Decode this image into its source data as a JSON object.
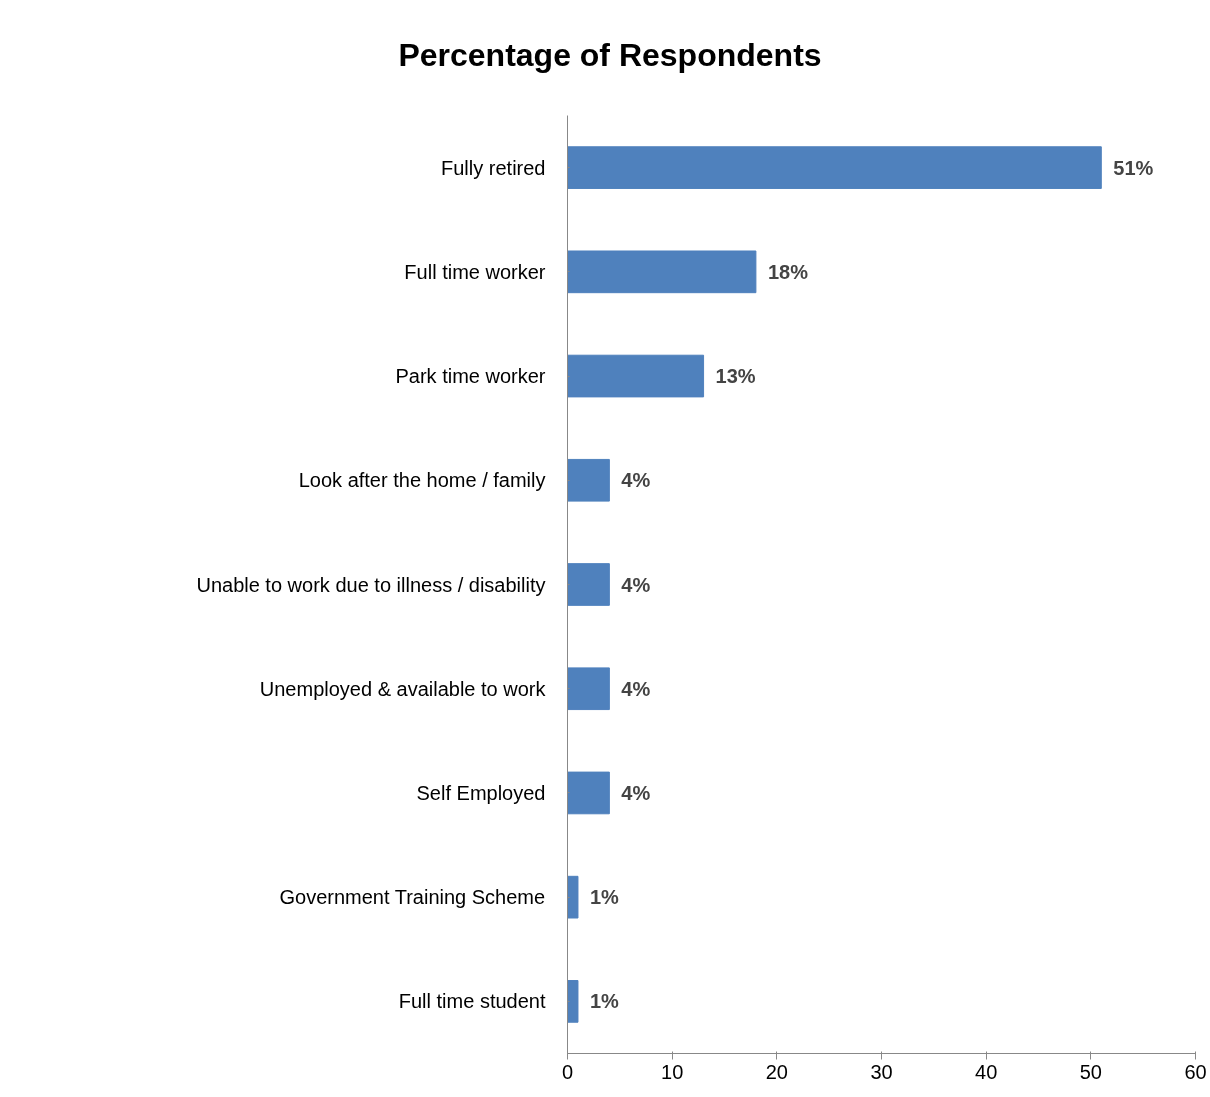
{
  "chart_data": {
    "type": "bar",
    "orientation": "horizontal",
    "title": "Percentage of Respondents",
    "categories": [
      "Fully retired",
      "Full time worker",
      "Park time worker",
      "Look after the home / family",
      "Unable to work due to illness / disability",
      "Unemployed & available to work",
      "Self Employed",
      "Government Training Scheme",
      "Full time student"
    ],
    "values": [
      51,
      18,
      13,
      4,
      4,
      4,
      4,
      1,
      1
    ],
    "value_labels": [
      "51%",
      "18%",
      "13%",
      "4%",
      "4%",
      "4%",
      "4%",
      "1%",
      "1%"
    ],
    "color": "#4f81bd",
    "xlim": [
      0,
      60
    ],
    "xticks": [
      0,
      10,
      20,
      30,
      40,
      50,
      60
    ],
    "grid": false
  }
}
